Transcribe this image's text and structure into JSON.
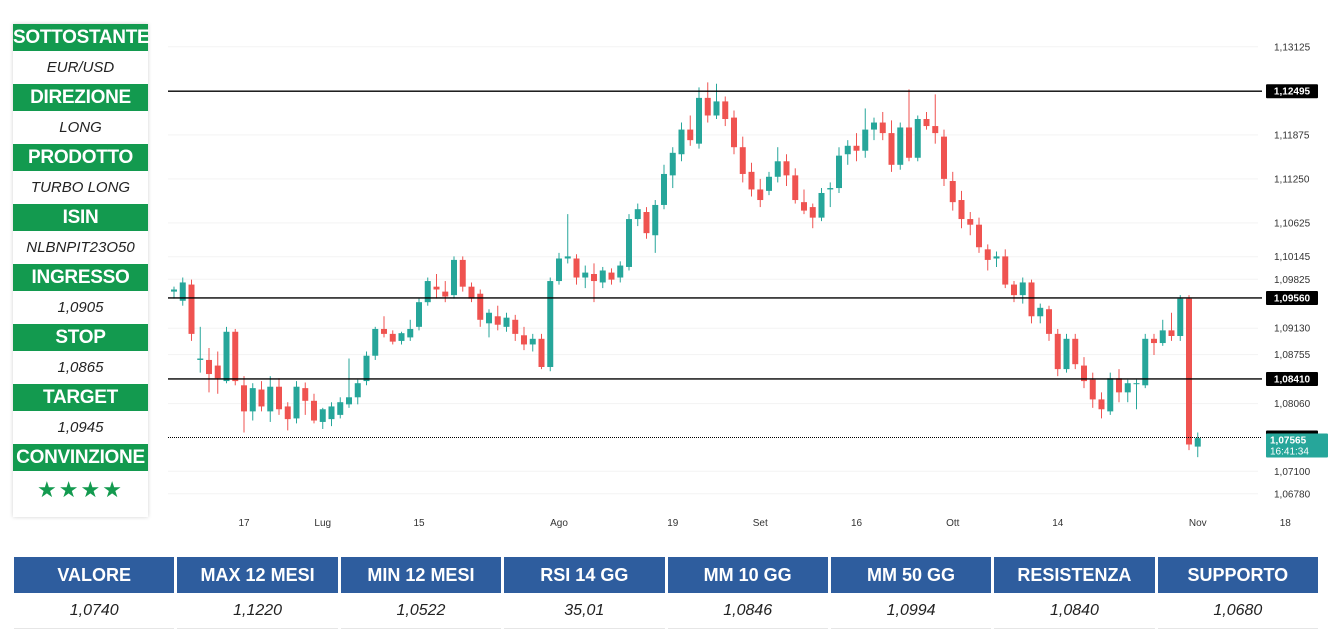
{
  "info_panel": {
    "rows": [
      {
        "label": "SOTTOSTANTE",
        "value": "EUR/USD"
      },
      {
        "label": "DIREZIONE",
        "value": "LONG"
      },
      {
        "label": "PRODOTTO",
        "value": "TURBO LONG"
      },
      {
        "label": "ISIN",
        "value": "NLBNPIT23O50"
      },
      {
        "label": "INGRESSO",
        "value": "1,0905"
      },
      {
        "label": "STOP",
        "value": "1,0865"
      },
      {
        "label": "TARGET",
        "value": "1,0945"
      }
    ],
    "conviction_label": "CONVINZIONE",
    "conviction_stars": "★★★★",
    "colors": {
      "header_bg": "#139a4f",
      "star": "#139a4f"
    }
  },
  "stats": [
    {
      "label": "VALORE",
      "value": "1,0740"
    },
    {
      "label": "MAX 12 MESI",
      "value": "1,1220"
    },
    {
      "label": "MIN 12 MESI",
      "value": "1,0522"
    },
    {
      "label": "RSI 14 GG",
      "value": "35,01"
    },
    {
      "label": "MM 10 GG",
      "value": "1,0846"
    },
    {
      "label": "MM 50 GG",
      "value": "1,0994"
    },
    {
      "label": "RESISTENZA",
      "value": "1,0840"
    },
    {
      "label": "SUPPORTO",
      "value": "1,0680"
    }
  ],
  "chart_data": {
    "type": "candlestick",
    "ylim": [
      1.0655,
      1.1325
    ],
    "y_ticks": [
      "1,13125",
      "1,11875",
      "1,11250",
      "1,10625",
      "1,10145",
      "1,09825",
      "1,09130",
      "1,08755",
      "1,08060",
      "1,07100",
      "1,06780"
    ],
    "y_tick_values": [
      1.13125,
      1.11875,
      1.1125,
      1.10625,
      1.10145,
      1.09825,
      1.0913,
      1.08755,
      1.0806,
      1.071,
      1.0678
    ],
    "x_ticks": [
      "17",
      "Lug",
      "15",
      "Ago",
      "19",
      "Set",
      "16",
      "Ott",
      "14",
      "Nov",
      "18"
    ],
    "x_tick_index": [
      8,
      17,
      28,
      44,
      57,
      67,
      78,
      89,
      101,
      117,
      127
    ],
    "horizontal_levels": [
      {
        "value": 1.12495,
        "label": "1,12495",
        "style": "solid"
      },
      {
        "value": 1.0956,
        "label": "1,09560",
        "style": "solid"
      },
      {
        "value": 1.0841,
        "label": "1,08410",
        "style": "solid"
      },
      {
        "value": 1.0758,
        "label": "1,07580",
        "style": "dotted"
      }
    ],
    "last_price": {
      "value": 1.07565,
      "label": "1,07565",
      "countdown": "16:41:34"
    },
    "colors": {
      "up": "#26a69a",
      "down": "#ef5350",
      "level_line": "#000000",
      "last_badge": "#26a69a",
      "badge_dark": "#000000"
    },
    "candles": [
      [
        1.0965,
        1.0972,
        1.0955,
        1.0968
      ],
      [
        1.0952,
        1.0985,
        1.0945,
        1.0978
      ],
      [
        1.0975,
        1.0982,
        1.0895,
        1.0905
      ],
      [
        1.0868,
        1.0915,
        1.085,
        1.087
      ],
      [
        1.0868,
        1.0885,
        1.0822,
        1.0848
      ],
      [
        1.086,
        1.088,
        1.082,
        1.0842
      ],
      [
        1.0838,
        1.0915,
        1.0835,
        1.0908
      ],
      [
        1.0908,
        1.0912,
        1.0832,
        1.0838
      ],
      [
        1.0832,
        1.0845,
        1.0765,
        1.0795
      ],
      [
        1.0795,
        1.0835,
        1.0782,
        1.0828
      ],
      [
        1.0826,
        1.0838,
        1.0795,
        1.0802
      ],
      [
        1.0795,
        1.0845,
        1.078,
        1.083
      ],
      [
        1.083,
        1.0842,
        1.079,
        1.0798
      ],
      [
        1.0802,
        1.0808,
        1.0768,
        1.0784
      ],
      [
        1.0785,
        1.0838,
        1.0778,
        1.083
      ],
      [
        1.0828,
        1.0836,
        1.079,
        1.081
      ],
      [
        1.081,
        1.082,
        1.0778,
        1.0782
      ],
      [
        1.078,
        1.08,
        1.077,
        1.0798
      ],
      [
        1.0784,
        1.0808,
        1.0774,
        1.0802
      ],
      [
        1.079,
        1.0815,
        1.0785,
        1.0808
      ],
      [
        1.0805,
        1.087,
        1.08,
        1.0815
      ],
      [
        1.0815,
        1.084,
        1.0805,
        1.0835
      ],
      [
        1.0838,
        1.088,
        1.0832,
        1.0874
      ],
      [
        1.0874,
        1.0915,
        1.0868,
        1.0912
      ],
      [
        1.0912,
        1.093,
        1.09,
        1.0905
      ],
      [
        1.0905,
        1.091,
        1.089,
        1.0894
      ],
      [
        1.0895,
        1.0908,
        1.089,
        1.0906
      ],
      [
        1.09,
        1.0925,
        1.0895,
        1.0912
      ],
      [
        1.0915,
        1.0955,
        1.091,
        1.095
      ],
      [
        1.095,
        1.0985,
        1.0945,
        1.098
      ],
      [
        1.0972,
        1.099,
        1.0955,
        1.0968
      ],
      [
        1.0965,
        1.098,
        1.095,
        1.0958
      ],
      [
        1.096,
        1.1015,
        1.0955,
        1.101
      ],
      [
        1.101,
        1.1015,
        1.0965,
        1.0972
      ],
      [
        1.0972,
        1.0978,
        1.095,
        1.0955
      ],
      [
        1.0962,
        1.0968,
        1.0915,
        1.0925
      ],
      [
        1.092,
        1.094,
        1.09,
        1.0935
      ],
      [
        1.093,
        1.0945,
        1.091,
        1.0918
      ],
      [
        1.0915,
        1.0935,
        1.0908,
        1.0928
      ],
      [
        1.0925,
        1.0932,
        1.0895,
        1.0905
      ],
      [
        1.0903,
        1.0915,
        1.0882,
        1.089
      ],
      [
        1.089,
        1.0905,
        1.088,
        1.0898
      ],
      [
        1.0898,
        1.0905,
        1.0855,
        1.0858
      ],
      [
        1.0858,
        1.0985,
        1.0852,
        1.098
      ],
      [
        1.098,
        1.102,
        1.0975,
        1.1012
      ],
      [
        1.1012,
        1.1075,
        1.1005,
        1.1015
      ],
      [
        1.1012,
        1.1018,
        1.0975,
        1.0985
      ],
      [
        1.0985,
        1.1002,
        1.097,
        1.0992
      ],
      [
        1.099,
        1.1005,
        1.095,
        1.098
      ],
      [
        1.0978,
        1.1,
        1.097,
        1.0995
      ],
      [
        1.0992,
        1.0998,
        1.0975,
        1.0982
      ],
      [
        1.0985,
        1.1008,
        1.0978,
        1.1002
      ],
      [
        1.1,
        1.1075,
        1.0995,
        1.1068
      ],
      [
        1.1068,
        1.109,
        1.1058,
        1.1082
      ],
      [
        1.1078,
        1.1085,
        1.104,
        1.1048
      ],
      [
        1.1045,
        1.1095,
        1.102,
        1.1088
      ],
      [
        1.1088,
        1.1145,
        1.1082,
        1.1132
      ],
      [
        1.113,
        1.117,
        1.1112,
        1.1162
      ],
      [
        1.116,
        1.1205,
        1.115,
        1.1195
      ],
      [
        1.1195,
        1.1215,
        1.1172,
        1.118
      ],
      [
        1.1175,
        1.1255,
        1.1168,
        1.124
      ],
      [
        1.124,
        1.1262,
        1.1205,
        1.1215
      ],
      [
        1.1215,
        1.126,
        1.121,
        1.1235
      ],
      [
        1.1235,
        1.1242,
        1.12,
        1.121
      ],
      [
        1.1212,
        1.1222,
        1.116,
        1.117
      ],
      [
        1.117,
        1.1185,
        1.112,
        1.1132
      ],
      [
        1.1135,
        1.1148,
        1.11,
        1.111
      ],
      [
        1.111,
        1.1125,
        1.1085,
        1.1095
      ],
      [
        1.1108,
        1.1135,
        1.1102,
        1.1128
      ],
      [
        1.1128,
        1.117,
        1.112,
        1.115
      ],
      [
        1.115,
        1.116,
        1.1115,
        1.113
      ],
      [
        1.113,
        1.114,
        1.109,
        1.1095
      ],
      [
        1.1092,
        1.111,
        1.1075,
        1.108
      ],
      [
        1.1085,
        1.109,
        1.1055,
        1.107
      ],
      [
        1.107,
        1.1112,
        1.1065,
        1.1105
      ],
      [
        1.111,
        1.112,
        1.1085,
        1.1112
      ],
      [
        1.1112,
        1.117,
        1.1105,
        1.1158
      ],
      [
        1.116,
        1.118,
        1.1145,
        1.1172
      ],
      [
        1.1172,
        1.119,
        1.115,
        1.1165
      ],
      [
        1.1165,
        1.1225,
        1.1155,
        1.1195
      ],
      [
        1.1195,
        1.1212,
        1.118,
        1.1205
      ],
      [
        1.1205,
        1.122,
        1.118,
        1.119
      ],
      [
        1.119,
        1.1208,
        1.1135,
        1.1145
      ],
      [
        1.1145,
        1.1205,
        1.1138,
        1.1198
      ],
      [
        1.1198,
        1.1252,
        1.115,
        1.1155
      ],
      [
        1.1155,
        1.1215,
        1.115,
        1.121
      ],
      [
        1.121,
        1.122,
        1.1195,
        1.12
      ],
      [
        1.12,
        1.1245,
        1.1175,
        1.119
      ],
      [
        1.1185,
        1.1195,
        1.1115,
        1.1125
      ],
      [
        1.1122,
        1.1135,
        1.108,
        1.1092
      ],
      [
        1.1095,
        1.1108,
        1.1055,
        1.1068
      ],
      [
        1.1068,
        1.1078,
        1.1045,
        1.106
      ],
      [
        1.106,
        1.107,
        1.102,
        1.1028
      ],
      [
        1.1025,
        1.1032,
        1.0995,
        1.101
      ],
      [
        1.1012,
        1.1022,
        1.1,
        1.1015
      ],
      [
        1.1015,
        1.1025,
        1.097,
        1.0975
      ],
      [
        1.0975,
        1.098,
        1.095,
        1.096
      ],
      [
        1.096,
        1.0985,
        1.0948,
        1.0978
      ],
      [
        1.0978,
        1.0982,
        1.092,
        1.093
      ],
      [
        1.093,
        1.0948,
        1.092,
        1.0942
      ],
      [
        1.094,
        1.0945,
        1.0895,
        1.0905
      ],
      [
        1.0905,
        1.0912,
        1.0845,
        1.0855
      ],
      [
        1.0855,
        1.0905,
        1.085,
        1.0898
      ],
      [
        1.0898,
        1.0905,
        1.0855,
        1.0862
      ],
      [
        1.086,
        1.0872,
        1.0828,
        1.0838
      ],
      [
        1.084,
        1.085,
        1.08,
        1.0812
      ],
      [
        1.0812,
        1.0822,
        1.0785,
        1.0798
      ],
      [
        1.0795,
        1.085,
        1.079,
        1.0842
      ],
      [
        1.0842,
        1.0855,
        1.0808,
        1.0822
      ],
      [
        1.0822,
        1.084,
        1.0808,
        1.0835
      ],
      [
        1.0835,
        1.084,
        1.0798,
        1.0835
      ],
      [
        1.0832,
        1.0905,
        1.0828,
        1.0898
      ],
      [
        1.0898,
        1.0905,
        1.0875,
        1.0892
      ],
      [
        1.0892,
        1.0925,
        1.0888,
        1.091
      ],
      [
        1.091,
        1.0935,
        1.0895,
        1.0902
      ],
      [
        1.0902,
        1.096,
        1.0895,
        1.0955
      ],
      [
        1.0955,
        1.096,
        1.074,
        1.0748
      ],
      [
        1.0745,
        1.0765,
        1.073,
        1.0757
      ]
    ]
  }
}
